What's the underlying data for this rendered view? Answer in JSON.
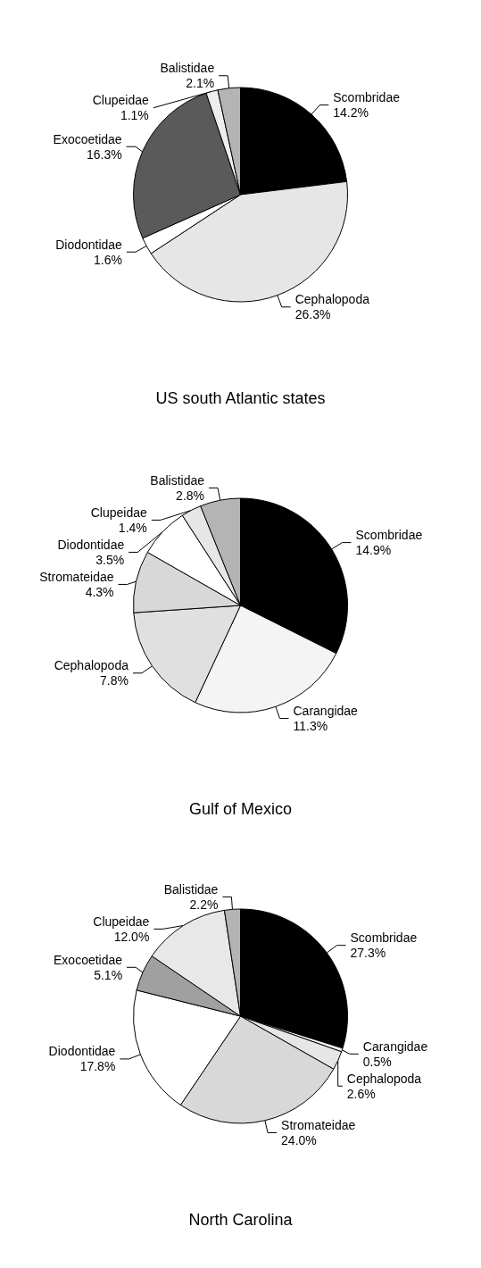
{
  "chart_data": [
    {
      "type": "pie",
      "title": "US south Atlantic states",
      "categories": [
        "Scombridae",
        "Cephalopoda",
        "Diodontidae",
        "Exocoetidae",
        "Clupeidae",
        "Balistidae"
      ],
      "values": [
        14.2,
        26.3,
        1.6,
        16.3,
        1.1,
        2.1
      ],
      "value_labels": [
        "14.2%",
        "26.3%",
        "1.6%",
        "16.3%",
        "1.1%",
        "2.1%"
      ],
      "colors": [
        "#000000",
        "#e6e6e6",
        "#ffffff",
        "#5a5a5a",
        "#eeeeee",
        "#b4b4b4"
      ]
    },
    {
      "type": "pie",
      "title": "Gulf of Mexico",
      "categories": [
        "Scombridae",
        "Carangidae",
        "Cephalopoda",
        "Stromateidae",
        "Diodontidae",
        "Clupeidae",
        "Balistidae"
      ],
      "values": [
        14.9,
        11.3,
        7.8,
        4.3,
        3.5,
        1.4,
        2.8
      ],
      "value_labels": [
        "14.9%",
        "11.3%",
        "7.8%",
        "4.3%",
        "3.5%",
        "1.4%",
        "2.8%"
      ],
      "colors": [
        "#000000",
        "#f4f4f4",
        "#e0e0e0",
        "#d8d8d8",
        "#ffffff",
        "#e6e6e6",
        "#b4b4b4"
      ]
    },
    {
      "type": "pie",
      "title": "North Carolina",
      "categories": [
        "Scombridae",
        "Carangidae",
        "Cephalopoda",
        "Stromateidae",
        "Diodontidae",
        "Exocoetidae",
        "Clupeidae",
        "Balistidae"
      ],
      "values": [
        27.3,
        0.5,
        2.6,
        24.0,
        17.8,
        5.1,
        12.0,
        2.2
      ],
      "value_labels": [
        "27.3%",
        "0.5%",
        "2.6%",
        "24.0%",
        "17.8%",
        "5.1%",
        "12.0%",
        "2.2%"
      ],
      "colors": [
        "#000000",
        "#f4f4f4",
        "#e6e6e6",
        "#d8d8d8",
        "#ffffff",
        "#a0a0a0",
        "#e8e8e8",
        "#b4b4b4"
      ]
    }
  ]
}
